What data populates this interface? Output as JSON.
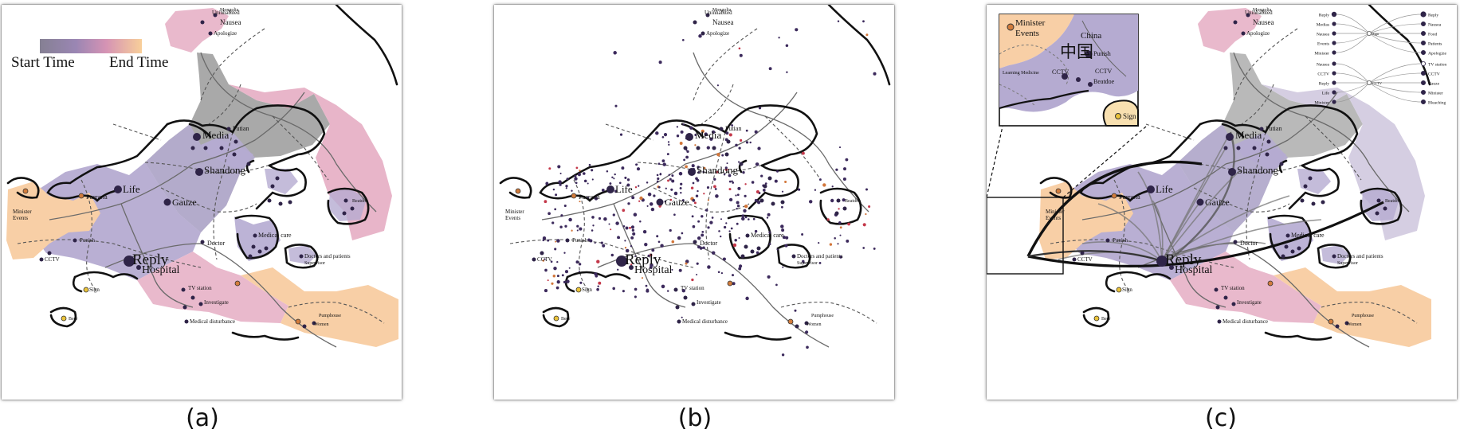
{
  "captions": [
    "(a)",
    "(b)",
    "(c)"
  ],
  "legend": {
    "start_label": "Start Time",
    "end_label": "End Time",
    "gradient_colors": [
      "#858093",
      "#9a86b3",
      "#d593b4",
      "#f2b38a",
      "#f8cf9a"
    ]
  },
  "colors": {
    "gray_region": "#a9a9a9",
    "purple_region": "#b5abd1",
    "pink_region": "#e7b1c6",
    "peach_region": "#f8cfa6",
    "node": "#2f2448",
    "border": "#111111"
  },
  "labels": {
    "uninhabited": "Uninhabited",
    "mongolia": "Mongolia",
    "nausea": "Nausea",
    "apologize": "Apologize",
    "putian": "Putian",
    "media": "Media",
    "shandong": "Shandong",
    "life": "Life",
    "gauze": "Gauze",
    "pueraria": "Pueraria",
    "minister": "Minister",
    "events": "Events",
    "punish": "Punish",
    "cctv": "CCTV",
    "reply": "Reply",
    "hospital": "Hospital",
    "doctor": "Doctor",
    "medical_care": "Medical care",
    "doctors_patients": "Doctors and patients",
    "tv_station": "TV station",
    "investigate": "Investigate",
    "medical_disturbance": "Medical disturbance",
    "sign": "Sign",
    "beer": "Beer",
    "women": "Women",
    "pumphouse": "Pumphouse",
    "supervisor": "Supervisor",
    "beatdoe": "Beatdoe",
    "china": "China",
    "chinese": "中国",
    "learning_medicine": "Learning Medicine",
    "tree_left": [
      "Reply",
      "Medias",
      "Nausea",
      "Events",
      "Minister",
      "Nausea",
      "CCTV",
      "Reply",
      "Life",
      "Minister"
    ],
    "tree_right": [
      "Reply",
      "Nausea",
      "Food",
      "Patients",
      "Apologize",
      "TV station",
      "CCTV",
      "Gauze",
      "Minister",
      "Bleaching"
    ],
    "tree_mid": [
      "Sign",
      "CCTV"
    ]
  }
}
